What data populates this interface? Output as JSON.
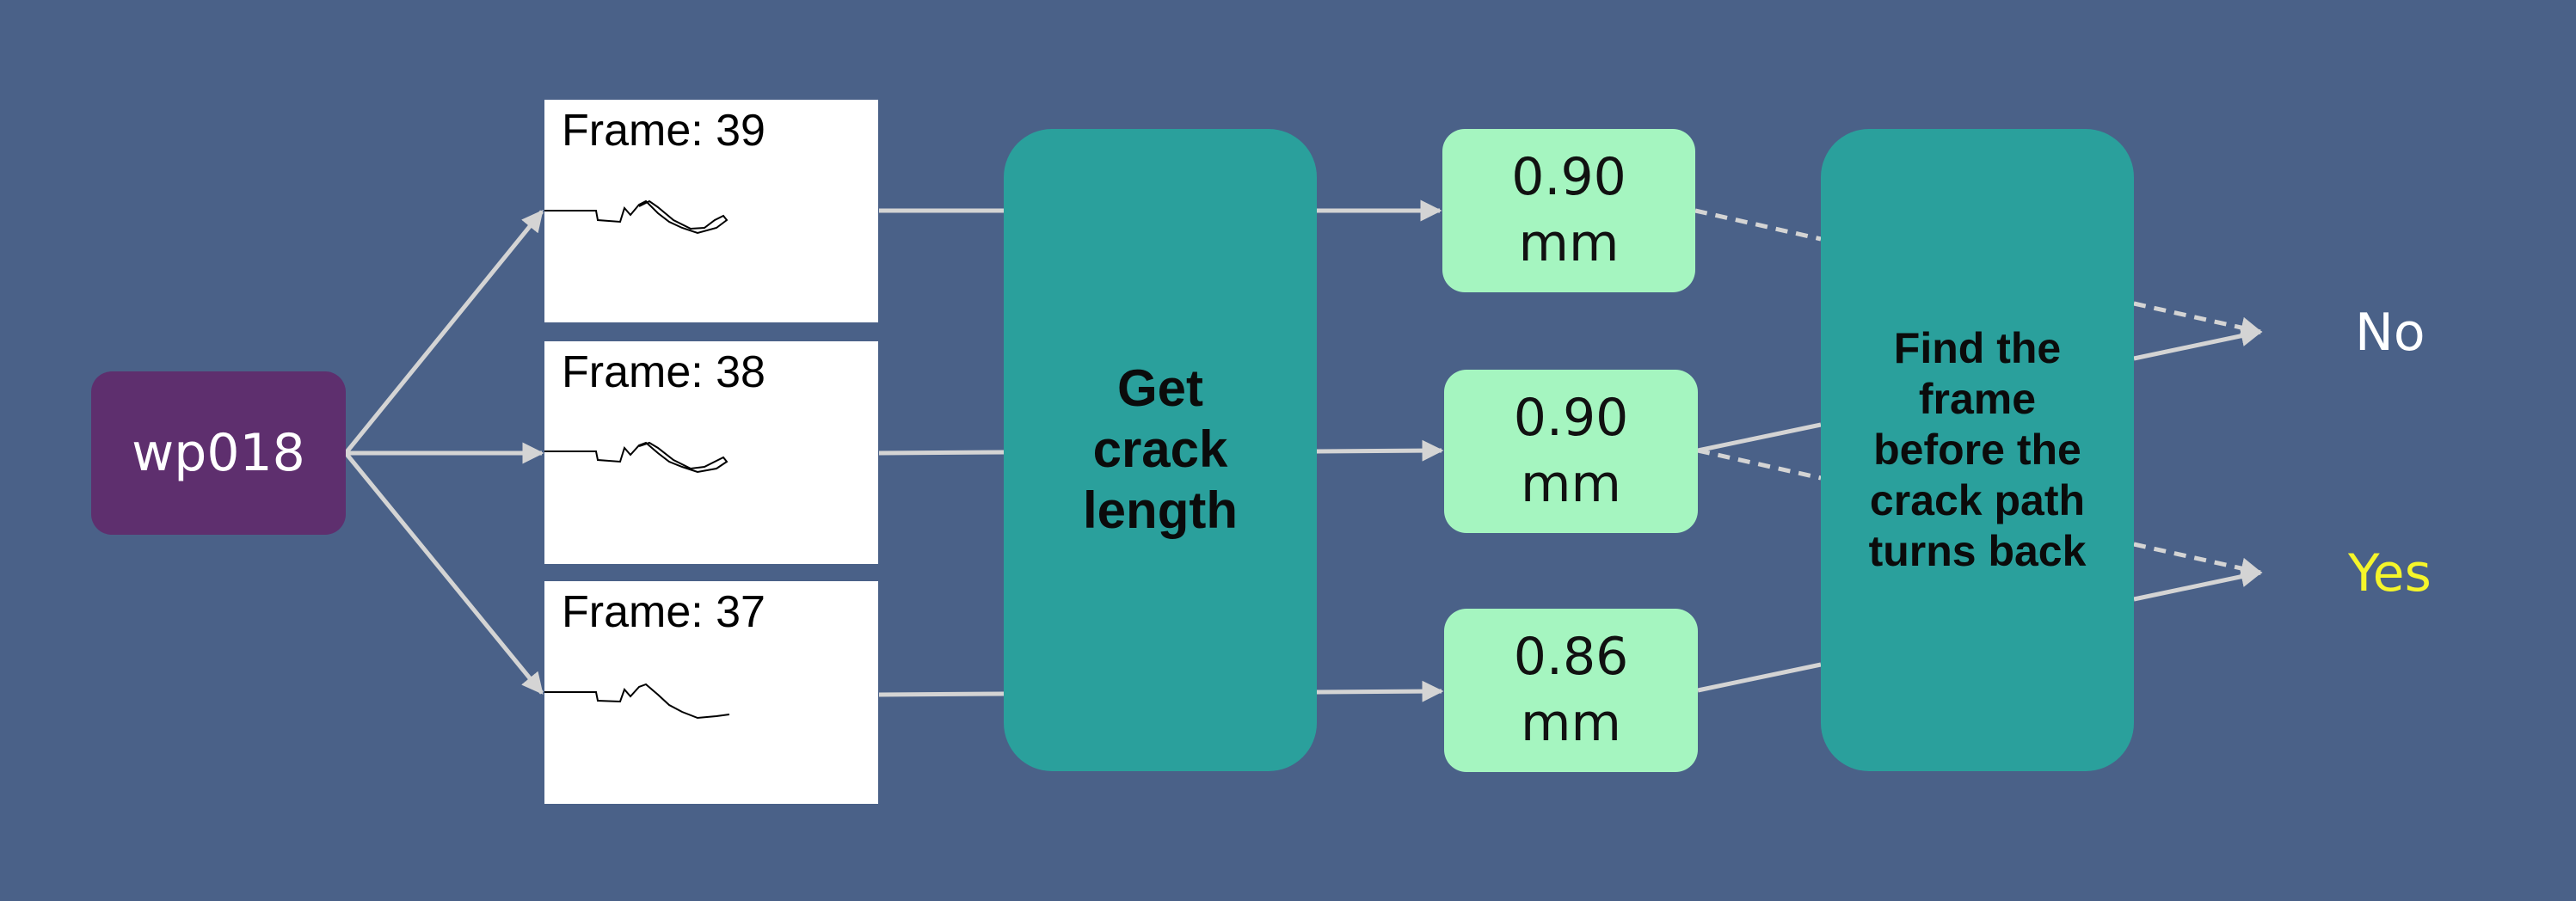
{
  "source": {
    "label": "wp018"
  },
  "frames": [
    {
      "label": "Frame: 39"
    },
    {
      "label": "Frame: 38"
    },
    {
      "label": "Frame: 37"
    }
  ],
  "process": {
    "crack_length": [
      "Get",
      "crack",
      "length"
    ],
    "find_frame": [
      "Find the",
      "frame",
      "before the",
      "crack path",
      "turns back"
    ]
  },
  "values": [
    {
      "number": "0.90",
      "unit": "mm"
    },
    {
      "number": "0.90",
      "unit": "mm"
    },
    {
      "number": "0.86",
      "unit": "mm"
    }
  ],
  "outcomes": {
    "no": "No",
    "yes": "Yes"
  },
  "colors": {
    "background": "#4a6188",
    "source_box": "#5e2f6e",
    "process_box": "#2aa09c",
    "value_box": "#a5f5c0",
    "connector": "#d4d4d4",
    "yes_text": "#f5f52a",
    "no_text": "#ffffff"
  }
}
